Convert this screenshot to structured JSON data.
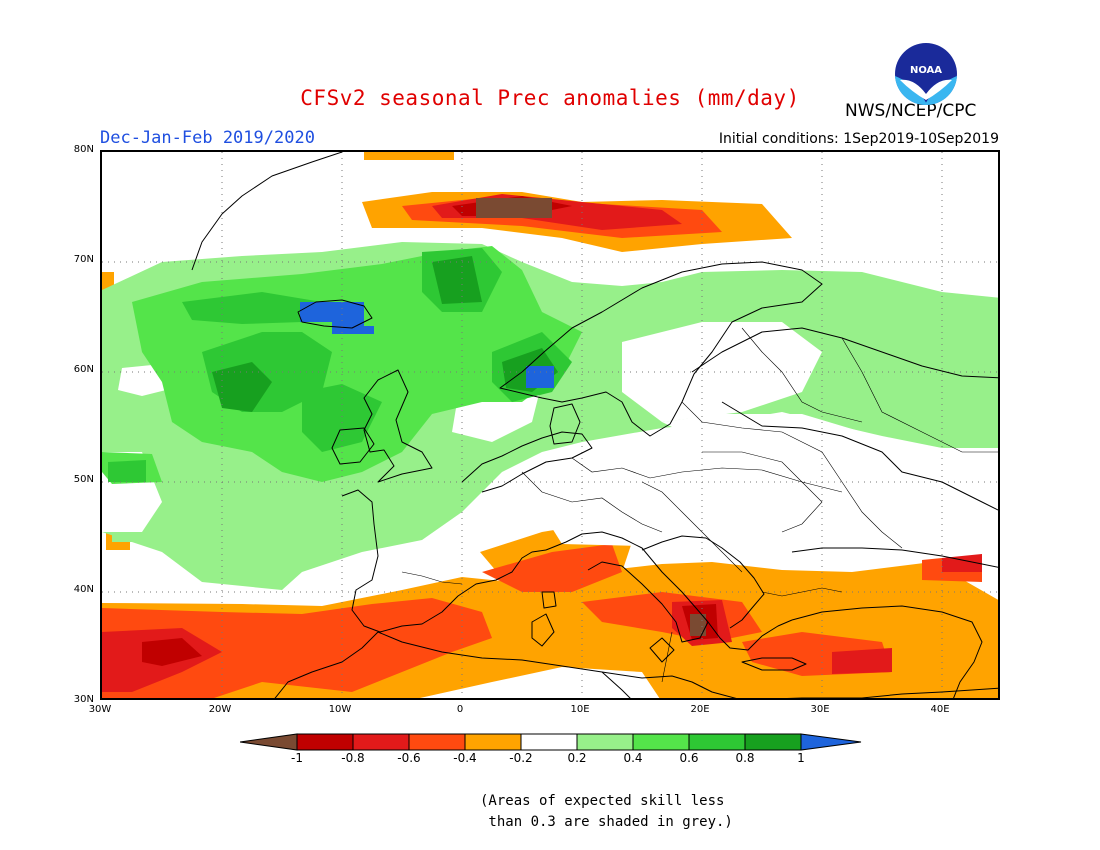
{
  "header": {
    "title": "CFSv2 seasonal Prec anomalies (mm/day)",
    "period": "Dec-Jan-Feb 2019/2020",
    "initial_conditions": "Initial conditions: 1Sep2019-10Sep2019",
    "agency": "NWS/NCEP/CPC",
    "logo_text": "NOAA"
  },
  "map": {
    "lat_labels": [
      "80N",
      "70N",
      "60N",
      "50N",
      "40N",
      "30N"
    ],
    "lon_labels": [
      "30W",
      "20W",
      "10W",
      "0",
      "10E",
      "20E",
      "30E",
      "40E"
    ],
    "lon_range": [
      -30,
      45
    ],
    "lat_range": [
      30,
      80
    ]
  },
  "legend": {
    "ticks": [
      "-1",
      "-0.8",
      "-0.6",
      "-0.4",
      "-0.2",
      "0.2",
      "0.4",
      "0.6",
      "0.8",
      "1"
    ],
    "colors": {
      "below_-1": "#7a4a32",
      "-1_-0.8": "#c00000",
      "-0.8_-0.6": "#e21a1a",
      "-0.6_-0.4": "#ff4a10",
      "-0.4_-0.2": "#ffa300",
      "-0.2_0.2": "#ffffff",
      "0.2_0.4": "#97f08a",
      "0.4_0.6": "#54e44a",
      "0.6_0.8": "#2ec834",
      "0.8_1": "#17a01f",
      "above_1": "#1e64dc"
    }
  },
  "footnote": "(Areas of expected skill less\n than 0.3 are shaded in grey.)"
}
